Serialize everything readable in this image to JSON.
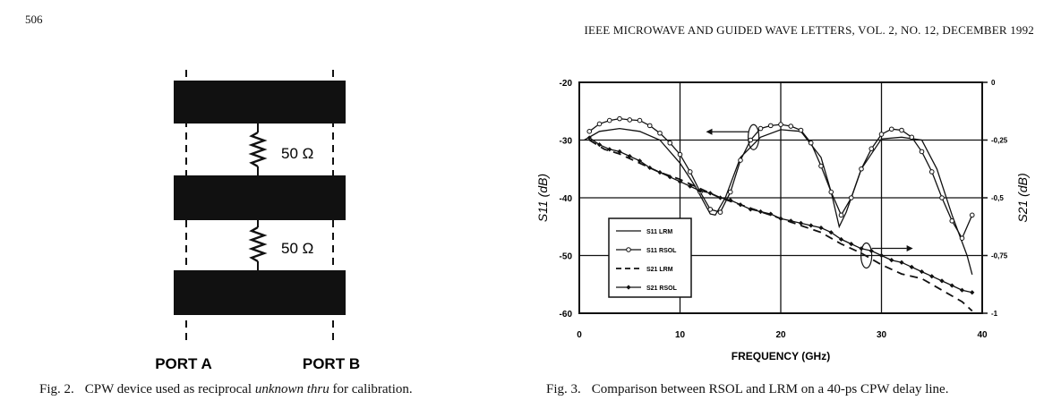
{
  "header": {
    "page_number": "506",
    "running_title": "IEEE MICROWAVE AND GUIDED WAVE LETTERS, VOL. 2, NO. 12, DECEMBER 1992"
  },
  "figure2": {
    "resistor_labels": [
      "50 Ω",
      "50 Ω"
    ],
    "port_a": "PORT A",
    "port_b": "PORT B",
    "caption": {
      "number": "Fig. 2.",
      "text_before": "CPW device used as reciprocal ",
      "emphasis": "unknown thru",
      "text_after": " for calibration."
    }
  },
  "figure3": {
    "caption": {
      "number": "Fig. 3.",
      "text": "Comparison between RSOL and LRM on a 40-ps CPW delay line."
    },
    "chart_data": {
      "type": "line",
      "xlabel": "FREQUENCY (GHz)",
      "ylabel_left": "S11 (dB)",
      "ylabel_right": "S21 (dB)",
      "xlim": [
        0,
        40
      ],
      "ylim_left": [
        -60,
        -20
      ],
      "ylim_right": [
        -1,
        0
      ],
      "x_ticks": [
        "0",
        "10",
        "20",
        "30",
        "40"
      ],
      "y_ticks_left": [
        "-20",
        "-30",
        "-40",
        "-50",
        "-60"
      ],
      "y_ticks_right": [
        "0",
        "-0,25",
        "-0,5",
        "-0,75",
        "-1"
      ],
      "grid": true,
      "legend_position": "lower-left",
      "series": [
        {
          "name": "S11 LRM",
          "axis": "left",
          "style": "solid",
          "x": [
            0.5,
            2,
            4,
            6,
            8,
            10,
            11.5,
            13,
            13.5,
            14.5,
            16,
            18,
            20,
            22,
            24,
            25,
            25.8,
            26.5,
            28,
            30,
            32,
            34,
            35.5,
            37,
            38.5,
            39
          ],
          "y": [
            -30,
            -28.5,
            -28,
            -28.5,
            -30,
            -34,
            -38,
            -42.8,
            -43,
            -40,
            -33,
            -29.5,
            -28.2,
            -28.5,
            -33,
            -39,
            -45,
            -42.5,
            -35,
            -29.8,
            -29.5,
            -30,
            -35,
            -43,
            -50,
            -53.3
          ]
        },
        {
          "name": "S11 RSOL",
          "axis": "left",
          "style": "solid-circle-markers",
          "x": [
            1,
            2,
            3,
            4,
            5,
            6,
            7,
            8,
            9,
            10,
            11,
            12,
            13,
            14,
            15,
            16,
            17,
            18,
            19,
            20,
            21,
            22,
            23,
            24,
            25,
            26,
            27,
            28,
            29,
            30,
            31,
            32,
            33,
            34,
            35,
            36,
            37,
            38,
            39
          ],
          "y": [
            -28.5,
            -27.2,
            -26.6,
            -26.3,
            -26.5,
            -26.6,
            -27.5,
            -28.8,
            -30.5,
            -32.5,
            -35.5,
            -39,
            -42,
            -42.5,
            -39,
            -33.5,
            -30,
            -28,
            -27.5,
            -27.3,
            -27.6,
            -28.3,
            -30.5,
            -34.5,
            -39,
            -43,
            -40,
            -35,
            -31.5,
            -29,
            -28.1,
            -28.3,
            -29.5,
            -32,
            -35.5,
            -40,
            -44,
            -47,
            -43
          ]
        },
        {
          "name": "S21 LRM",
          "axis": "right",
          "style": "dashed",
          "x": [
            1,
            2.5,
            4,
            6,
            8,
            10,
            12,
            14,
            16,
            18,
            20,
            22,
            24,
            26,
            28,
            30,
            32,
            34,
            36,
            38,
            39
          ],
          "y": [
            -0.25,
            -0.29,
            -0.31,
            -0.35,
            -0.39,
            -0.42,
            -0.46,
            -0.5,
            -0.53,
            -0.56,
            -0.59,
            -0.62,
            -0.65,
            -0.7,
            -0.74,
            -0.79,
            -0.83,
            -0.85,
            -0.9,
            -0.95,
            -0.99
          ]
        },
        {
          "name": "S21 RSOL",
          "axis": "right",
          "style": "solid-diamond-markers",
          "x": [
            1,
            2,
            3,
            4,
            5,
            6,
            7,
            8,
            9,
            10,
            11,
            12,
            13,
            14,
            15,
            16,
            17,
            18,
            19,
            20,
            21,
            22,
            23,
            24,
            25,
            26,
            27,
            28,
            29,
            30,
            31,
            32,
            33,
            34,
            35,
            36,
            37,
            38,
            39
          ],
          "y": [
            -0.24,
            -0.27,
            -0.29,
            -0.3,
            -0.32,
            -0.34,
            -0.37,
            -0.39,
            -0.41,
            -0.43,
            -0.45,
            -0.47,
            -0.48,
            -0.5,
            -0.51,
            -0.53,
            -0.55,
            -0.56,
            -0.57,
            -0.59,
            -0.6,
            -0.61,
            -0.62,
            -0.63,
            -0.65,
            -0.68,
            -0.7,
            -0.72,
            -0.73,
            -0.75,
            -0.77,
            -0.78,
            -0.8,
            -0.82,
            -0.84,
            -0.86,
            -0.88,
            -0.9,
            -0.91
          ]
        }
      ]
    }
  }
}
